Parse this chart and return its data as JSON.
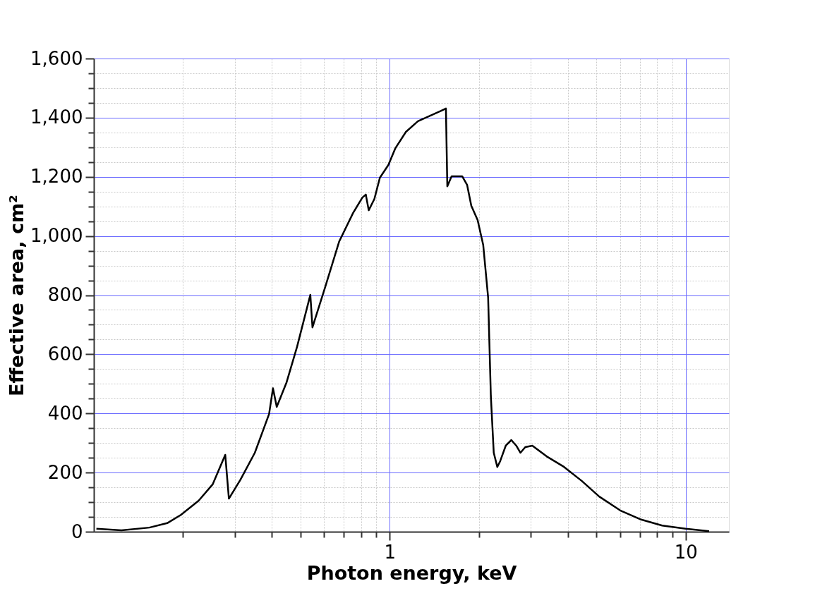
{
  "chart_data": {
    "type": "line",
    "xlabel": "Photon energy, keV",
    "ylabel": "Effective area, cm²",
    "log": "x",
    "grid": true,
    "line_style": "solid",
    "marker": "none",
    "xlim": [
      0.1,
      14
    ],
    "ylim": [
      0,
      1600
    ],
    "xticks": [
      {
        "value": 0.2,
        "label": null
      },
      {
        "value": 0.3,
        "label": null
      },
      {
        "value": 0.4,
        "label": null
      },
      {
        "value": 0.5,
        "label": null
      },
      {
        "value": 0.6,
        "label": null
      },
      {
        "value": 0.7,
        "label": null
      },
      {
        "value": 0.8,
        "label": null
      },
      {
        "value": 0.9,
        "label": null
      },
      1,
      {
        "value": 2,
        "label": null
      },
      {
        "value": 3,
        "label": null
      },
      {
        "value": 4,
        "label": null
      },
      {
        "value": 5,
        "label": null
      },
      {
        "value": 6,
        "label": null
      },
      {
        "value": 7,
        "label": null
      },
      {
        "value": 8,
        "label": null
      },
      {
        "value": 9,
        "label": null
      },
      10
    ],
    "yticks": [
      0,
      {
        "value": 50,
        "label": null
      },
      {
        "value": 100,
        "label": null
      },
      {
        "value": 150,
        "label": null
      },
      200,
      {
        "value": 250,
        "label": null
      },
      {
        "value": 300,
        "label": null
      },
      {
        "value": 350,
        "label": null
      },
      400,
      {
        "value": 450,
        "label": null
      },
      {
        "value": 500,
        "label": null
      },
      {
        "value": 550,
        "label": null
      },
      600,
      {
        "value": 650,
        "label": null
      },
      {
        "value": 700,
        "label": null
      },
      {
        "value": 750,
        "label": null
      },
      800,
      {
        "value": 850,
        "label": null
      },
      {
        "value": 900,
        "label": null
      },
      {
        "value": 950,
        "label": null
      },
      {
        "value": 1000,
        "label": "1,000"
      },
      {
        "value": 1050,
        "label": null
      },
      {
        "value": 1100,
        "label": null
      },
      {
        "value": 1150,
        "label": null
      },
      {
        "value": 1200,
        "label": "1,200"
      },
      {
        "value": 1250,
        "label": null
      },
      {
        "value": 1300,
        "label": null
      },
      {
        "value": 1350,
        "label": null
      },
      {
        "value": 1400,
        "label": "1,400"
      },
      {
        "value": 1450,
        "label": null
      },
      {
        "value": 1500,
        "label": null
      },
      {
        "value": 1550,
        "label": null
      },
      {
        "value": 1600,
        "label": "1,600"
      }
    ],
    "x": [
      0.102,
      0.124,
      0.154,
      0.177,
      0.197,
      0.226,
      0.252,
      0.278,
      0.286,
      0.313,
      0.35,
      0.391,
      0.403,
      0.415,
      0.448,
      0.486,
      0.539,
      0.548,
      0.605,
      0.675,
      0.752,
      0.808,
      0.83,
      0.849,
      0.887,
      0.926,
      0.989,
      1.045,
      1.134,
      1.245,
      1.373,
      1.491,
      1.548,
      1.565,
      1.618,
      1.757,
      1.825,
      1.886,
      1.981,
      2.069,
      2.15,
      2.196,
      2.246,
      2.309,
      2.36,
      2.466,
      2.576,
      2.676,
      2.765,
      2.871,
      3.033,
      3.388,
      3.883,
      4.452,
      5.104,
      6.01,
      7.075,
      8.33,
      10.0,
      12.0
    ],
    "series": [
      {
        "color": "#000000",
        "values": [
          10,
          5,
          14,
          29,
          57,
          105,
          160,
          260,
          112,
          176,
          267,
          398,
          485,
          422,
          505,
          625,
          801,
          691,
          827,
          982,
          1078,
          1130,
          1140,
          1087,
          1125,
          1197,
          1240,
          1297,
          1352,
          1388,
          1407,
          1423,
          1431,
          1168,
          1202,
          1202,
          1173,
          1102,
          1054,
          970,
          792,
          458,
          267,
          219,
          238,
          291,
          310,
          291,
          267,
          286,
          291,
          255,
          219,
          172,
          119,
          72,
          41,
          21,
          10,
          2
        ]
      }
    ]
  }
}
